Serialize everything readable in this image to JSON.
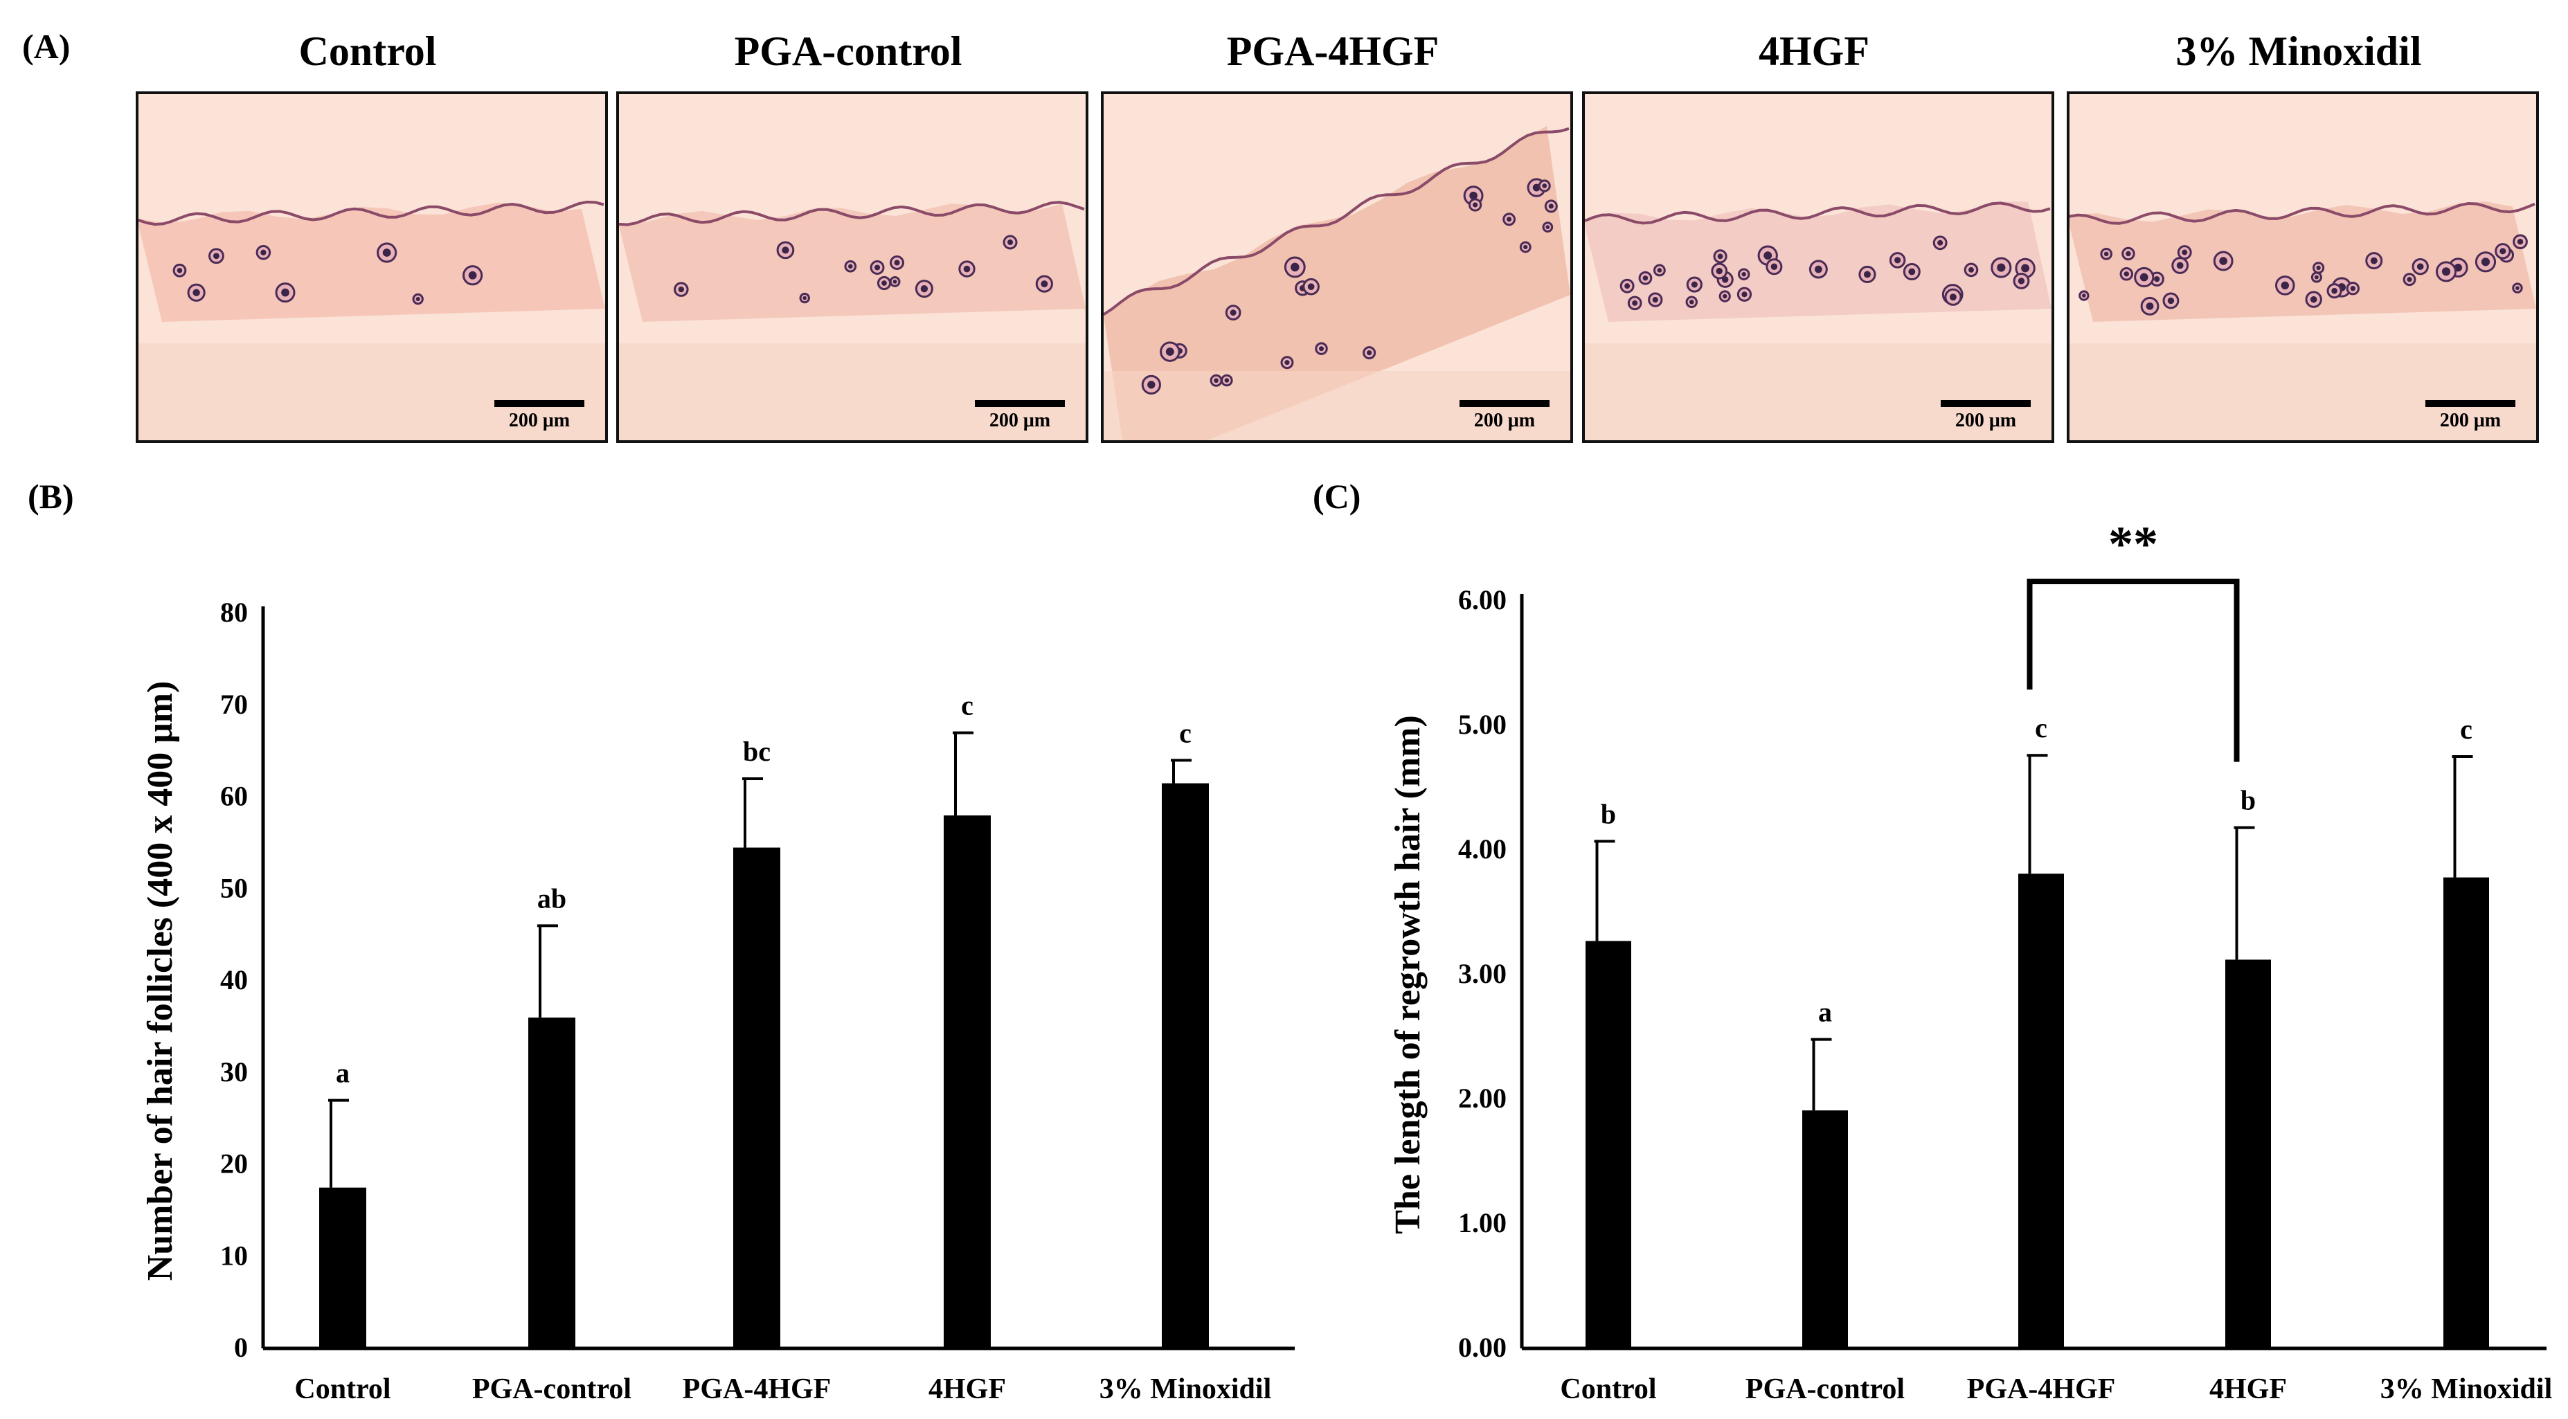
{
  "panel_labels": {
    "a": "(A)",
    "b": "(B)",
    "c": "(C)"
  },
  "micrographs": [
    {
      "title": "Control",
      "scale": "200 μm",
      "follicles": 8,
      "tint": "#f4c2b4"
    },
    {
      "title": "PGA-control",
      "scale": "200 μm",
      "follicles": 12,
      "tint": "#f2c4b6"
    },
    {
      "title": "PGA-4HGF",
      "scale": "200 μm",
      "follicles": 20,
      "tint": "#efbca8"
    },
    {
      "title": "4HGF",
      "scale": "200 μm",
      "follicles": 26,
      "tint": "#f0c8c2"
    },
    {
      "title": "3% Minoxidil",
      "scale": "200 μm",
      "follicles": 28,
      "tint": "#f1c0b0"
    }
  ],
  "chart_data": [
    {
      "type": "bar",
      "title": "",
      "xlabel": "",
      "ylabel": "Number of hair follicles (400 x 400 μm)",
      "categories": [
        "Control",
        "PGA-control",
        "PGA-4HGF",
        "4HGF",
        "3% Minoxidil"
      ],
      "values": [
        17.5,
        36,
        54.5,
        58,
        61.5
      ],
      "errors": [
        9.5,
        10,
        7.5,
        9,
        2.5
      ],
      "letters": [
        "a",
        "ab",
        "bc",
        "c",
        "c"
      ],
      "ylim": [
        0,
        80
      ],
      "yticks": [
        "0",
        "10",
        "20",
        "30",
        "40",
        "50",
        "60",
        "70",
        "80"
      ],
      "bar_color": "#000000"
    },
    {
      "type": "bar",
      "title": "",
      "xlabel": "",
      "ylabel": "The length of regrowth hair (mm)",
      "categories": [
        "Control",
        "PGA-control",
        "PGA-4HGF",
        "4HGF",
        "3% Minoxidil"
      ],
      "values": [
        3.27,
        1.91,
        3.81,
        3.12,
        3.78
      ],
      "errors": [
        0.8,
        0.57,
        0.95,
        1.06,
        0.97
      ],
      "letters": [
        "b",
        "a",
        "c",
        "b",
        "c"
      ],
      "ylim": [
        0,
        6
      ],
      "yticks": [
        "0.00",
        "1.00",
        "2.00",
        "3.00",
        "4.00",
        "5.00",
        "6.00"
      ],
      "significance": {
        "from": "PGA-4HGF",
        "to": "4HGF",
        "label": "**"
      },
      "bar_color": "#000000"
    }
  ]
}
